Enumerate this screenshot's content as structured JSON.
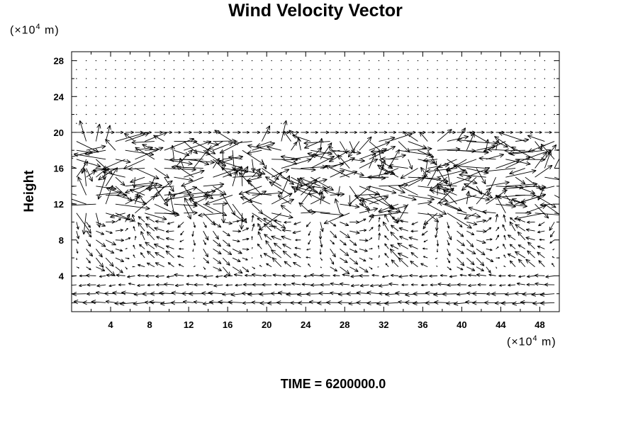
{
  "chart_data": {
    "type": "vector_field",
    "title": "Wind Velocity Vector",
    "ylabel": "Height",
    "y_unit": {
      "base": "(×10",
      "exp": "4",
      "suffix": " m)"
    },
    "x_unit": {
      "base": "(×10",
      "exp": "4",
      "suffix": " m)"
    },
    "xlim": [
      0,
      50
    ],
    "ylim": [
      0,
      29
    ],
    "x_ticks": [
      4,
      8,
      12,
      16,
      20,
      24,
      28,
      32,
      36,
      40,
      44,
      48
    ],
    "y_ticks": [
      4,
      8,
      12,
      16,
      20,
      24,
      28
    ],
    "grid": false,
    "annotation": "TIME = 6200000.0",
    "field": {
      "x_start": 0.5,
      "x_step": 1.0,
      "nx": 50,
      "y_start": 1.0,
      "y_step": 1.0,
      "ny": 28,
      "seed": 7
    }
  }
}
